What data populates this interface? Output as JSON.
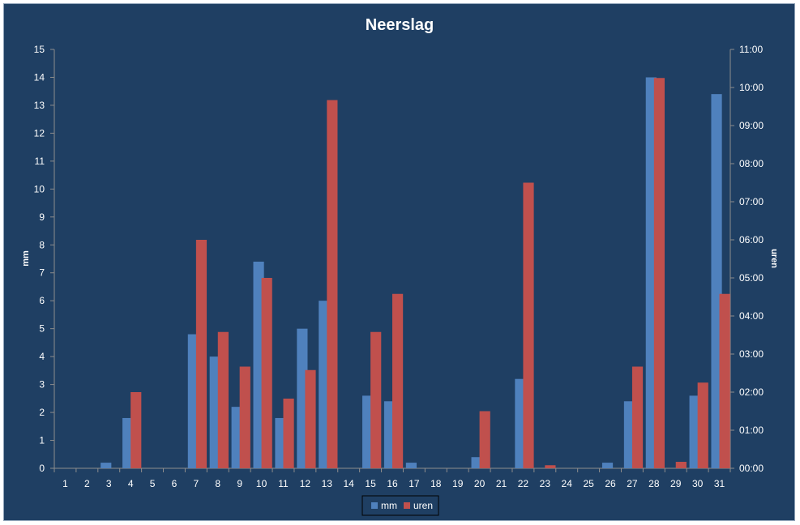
{
  "chart_data": {
    "type": "bar",
    "title": "Neerslag",
    "ylabel": "mm",
    "y2label": "uren",
    "ylim": [
      0,
      15
    ],
    "y2lim": [
      0,
      11
    ],
    "yticks": [
      "0",
      "1",
      "2",
      "3",
      "4",
      "5",
      "6",
      "7",
      "8",
      "9",
      "10",
      "11",
      "12",
      "13",
      "14",
      "15"
    ],
    "y2ticks": [
      "00:00",
      "01:00",
      "02:00",
      "03:00",
      "04:00",
      "05:00",
      "06:00",
      "07:00",
      "08:00",
      "09:00",
      "10:00",
      "11:00"
    ],
    "categories": [
      "1",
      "2",
      "3",
      "4",
      "5",
      "6",
      "7",
      "8",
      "9",
      "10",
      "11",
      "12",
      "13",
      "14",
      "15",
      "16",
      "17",
      "18",
      "19",
      "20",
      "21",
      "22",
      "23",
      "24",
      "25",
      "26",
      "27",
      "28",
      "29",
      "30",
      "31"
    ],
    "legend_position": "bottom",
    "series": [
      {
        "name": "mm",
        "axis": "left",
        "color": "#4f81bd",
        "values": [
          0,
          0,
          0.2,
          1.8,
          0,
          0,
          4.8,
          4.0,
          2.2,
          7.4,
          1.8,
          5.0,
          6.0,
          0,
          2.6,
          2.4,
          0.2,
          0,
          0,
          0.4,
          0,
          3.2,
          0,
          0,
          0,
          0.2,
          2.4,
          14.0,
          0,
          2.6,
          13.4
        ]
      },
      {
        "name": "uren",
        "axis": "right",
        "color": "#c0504d",
        "values": [
          0,
          0,
          0,
          2.0,
          0,
          0,
          6.0,
          3.58,
          2.67,
          5.0,
          1.83,
          2.58,
          9.67,
          0,
          3.58,
          4.58,
          0,
          0,
          0,
          1.5,
          0,
          7.5,
          0.08,
          0,
          0,
          0,
          2.67,
          10.25,
          0.17,
          2.25,
          4.58
        ]
      }
    ]
  }
}
